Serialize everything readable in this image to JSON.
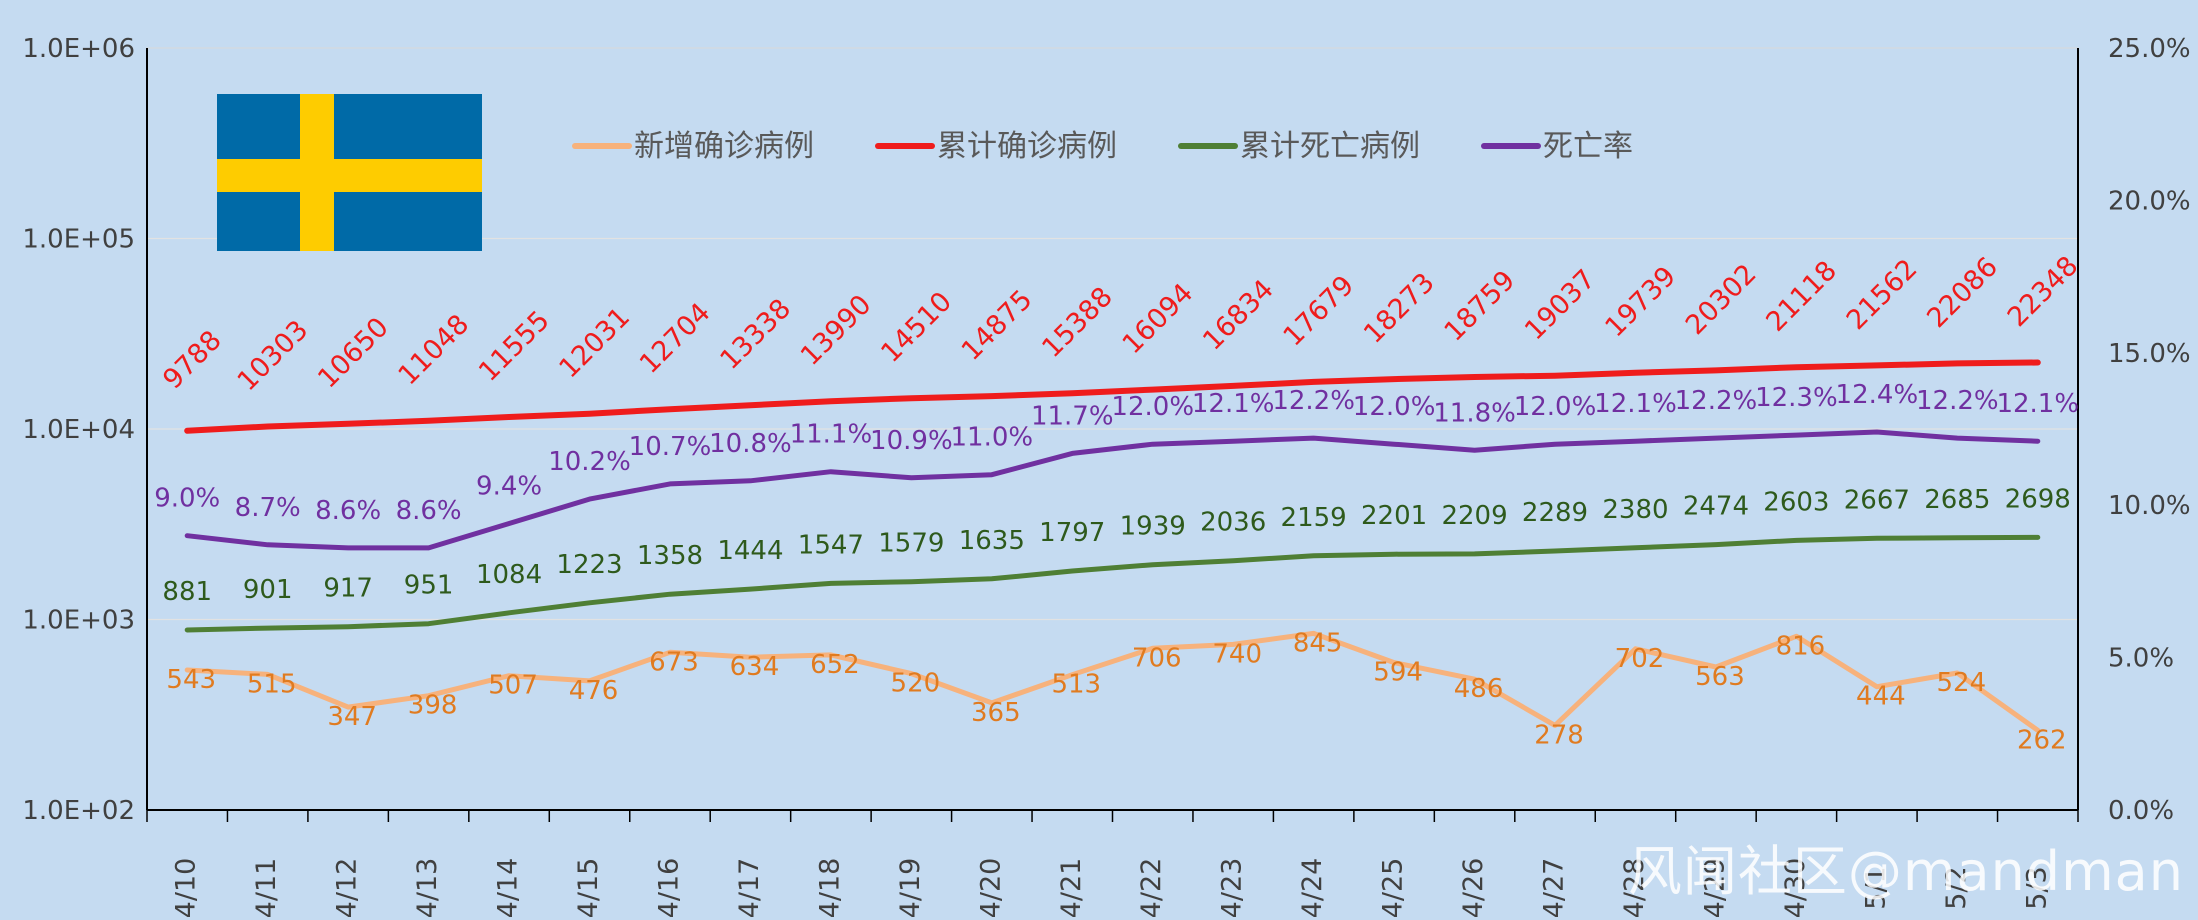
{
  "colors": {
    "background": "#c5dbf1",
    "new_cases": "#f7b27c",
    "new_cases_label": "#e07b20",
    "total_cases": "#ef1c1c",
    "total_deaths": "#4f7f35",
    "total_deaths_label": "#2e5a1c",
    "death_rate": "#7030a0",
    "flag_blue": "#006aa7",
    "flag_yellow": "#fecc00"
  },
  "watermark": "风闻社区@mandman",
  "chart_data": {
    "type": "line",
    "categories": [
      "4/10",
      "4/11",
      "4/12",
      "4/13",
      "4/14",
      "4/15",
      "4/16",
      "4/17",
      "4/18",
      "4/19",
      "4/20",
      "4/21",
      "4/22",
      "4/23",
      "4/24",
      "4/25",
      "4/26",
      "4/27",
      "4/28",
      "4/29",
      "4/30",
      "5/1",
      "5/2",
      "5/3"
    ],
    "y_left": {
      "scale": "log",
      "range": [
        100,
        1000000
      ],
      "ticks": [
        "1.0E+02",
        "1.0E+03",
        "1.0E+04",
        "1.0E+05",
        "1.0E+06"
      ]
    },
    "y_right": {
      "range": [
        0,
        25
      ],
      "ticks": [
        "0.0%",
        "5.0%",
        "10.0%",
        "15.0%",
        "20.0%",
        "25.0%"
      ]
    },
    "legend_position": "top",
    "series": [
      {
        "name": "新增确诊病例",
        "axis": "left",
        "values": [
          543,
          515,
          347,
          398,
          507,
          476,
          673,
          634,
          652,
          520,
          365,
          513,
          706,
          740,
          845,
          594,
          486,
          278,
          702,
          563,
          816,
          444,
          524,
          262
        ],
        "labels": [
          "543",
          "515",
          "347",
          "398",
          "507",
          "476",
          "673",
          "634",
          "652",
          "520",
          "365",
          "513",
          "706",
          "740",
          "845",
          "594",
          "486",
          "278",
          "702",
          "563",
          "816",
          "444",
          "524",
          "262"
        ]
      },
      {
        "name": "累计确诊病例",
        "axis": "left",
        "values": [
          9788,
          10303,
          10650,
          11048,
          11555,
          12031,
          12704,
          13338,
          13990,
          14510,
          14875,
          15388,
          16094,
          16834,
          17679,
          18273,
          18759,
          19037,
          19739,
          20302,
          21118,
          21562,
          22086,
          22348
        ],
        "labels": [
          "9788",
          "10303",
          "10650",
          "11048",
          "11555",
          "12031",
          "12704",
          "13338",
          "13990",
          "14510",
          "14875",
          "15388",
          "16094",
          "16834",
          "17679",
          "18273",
          "18759",
          "19037",
          "19739",
          "20302",
          "21118",
          "21562",
          "22086",
          "22348"
        ]
      },
      {
        "name": "累计死亡病例",
        "axis": "left",
        "values": [
          881,
          901,
          917,
          951,
          1084,
          1223,
          1358,
          1444,
          1547,
          1579,
          1635,
          1797,
          1939,
          2036,
          2159,
          2201,
          2209,
          2289,
          2380,
          2474,
          2603,
          2667,
          2685,
          2698
        ],
        "labels": [
          "881",
          "901",
          "917",
          "951",
          "1084",
          "1223",
          "1358",
          "1444",
          "1547",
          "1579",
          "1635",
          "1797",
          "1939",
          "2036",
          "2159",
          "2201",
          "2209",
          "2289",
          "2380",
          "2474",
          "2603",
          "2667",
          "2685",
          "2698"
        ]
      },
      {
        "name": "死亡率",
        "axis": "right",
        "values": [
          9.0,
          8.7,
          8.6,
          8.6,
          9.4,
          10.2,
          10.7,
          10.8,
          11.1,
          10.9,
          11.0,
          11.7,
          12.0,
          12.1,
          12.2,
          12.0,
          11.8,
          12.0,
          12.1,
          12.2,
          12.3,
          12.4,
          12.2,
          12.1
        ],
        "labels": [
          "9.0%",
          "8.7%",
          "8.6%",
          "8.6%",
          "9.4%",
          "10.2%",
          "10.7%",
          "10.8%",
          "11.1%",
          "10.9%",
          "11.0%",
          "11.7%",
          "12.0%",
          "12.1%",
          "12.2%",
          "12.0%",
          "11.8%",
          "12.0%",
          "12.1%",
          "12.2%",
          "12.3%",
          "12.4%",
          "12.2%",
          "12.1%"
        ]
      }
    ]
  }
}
